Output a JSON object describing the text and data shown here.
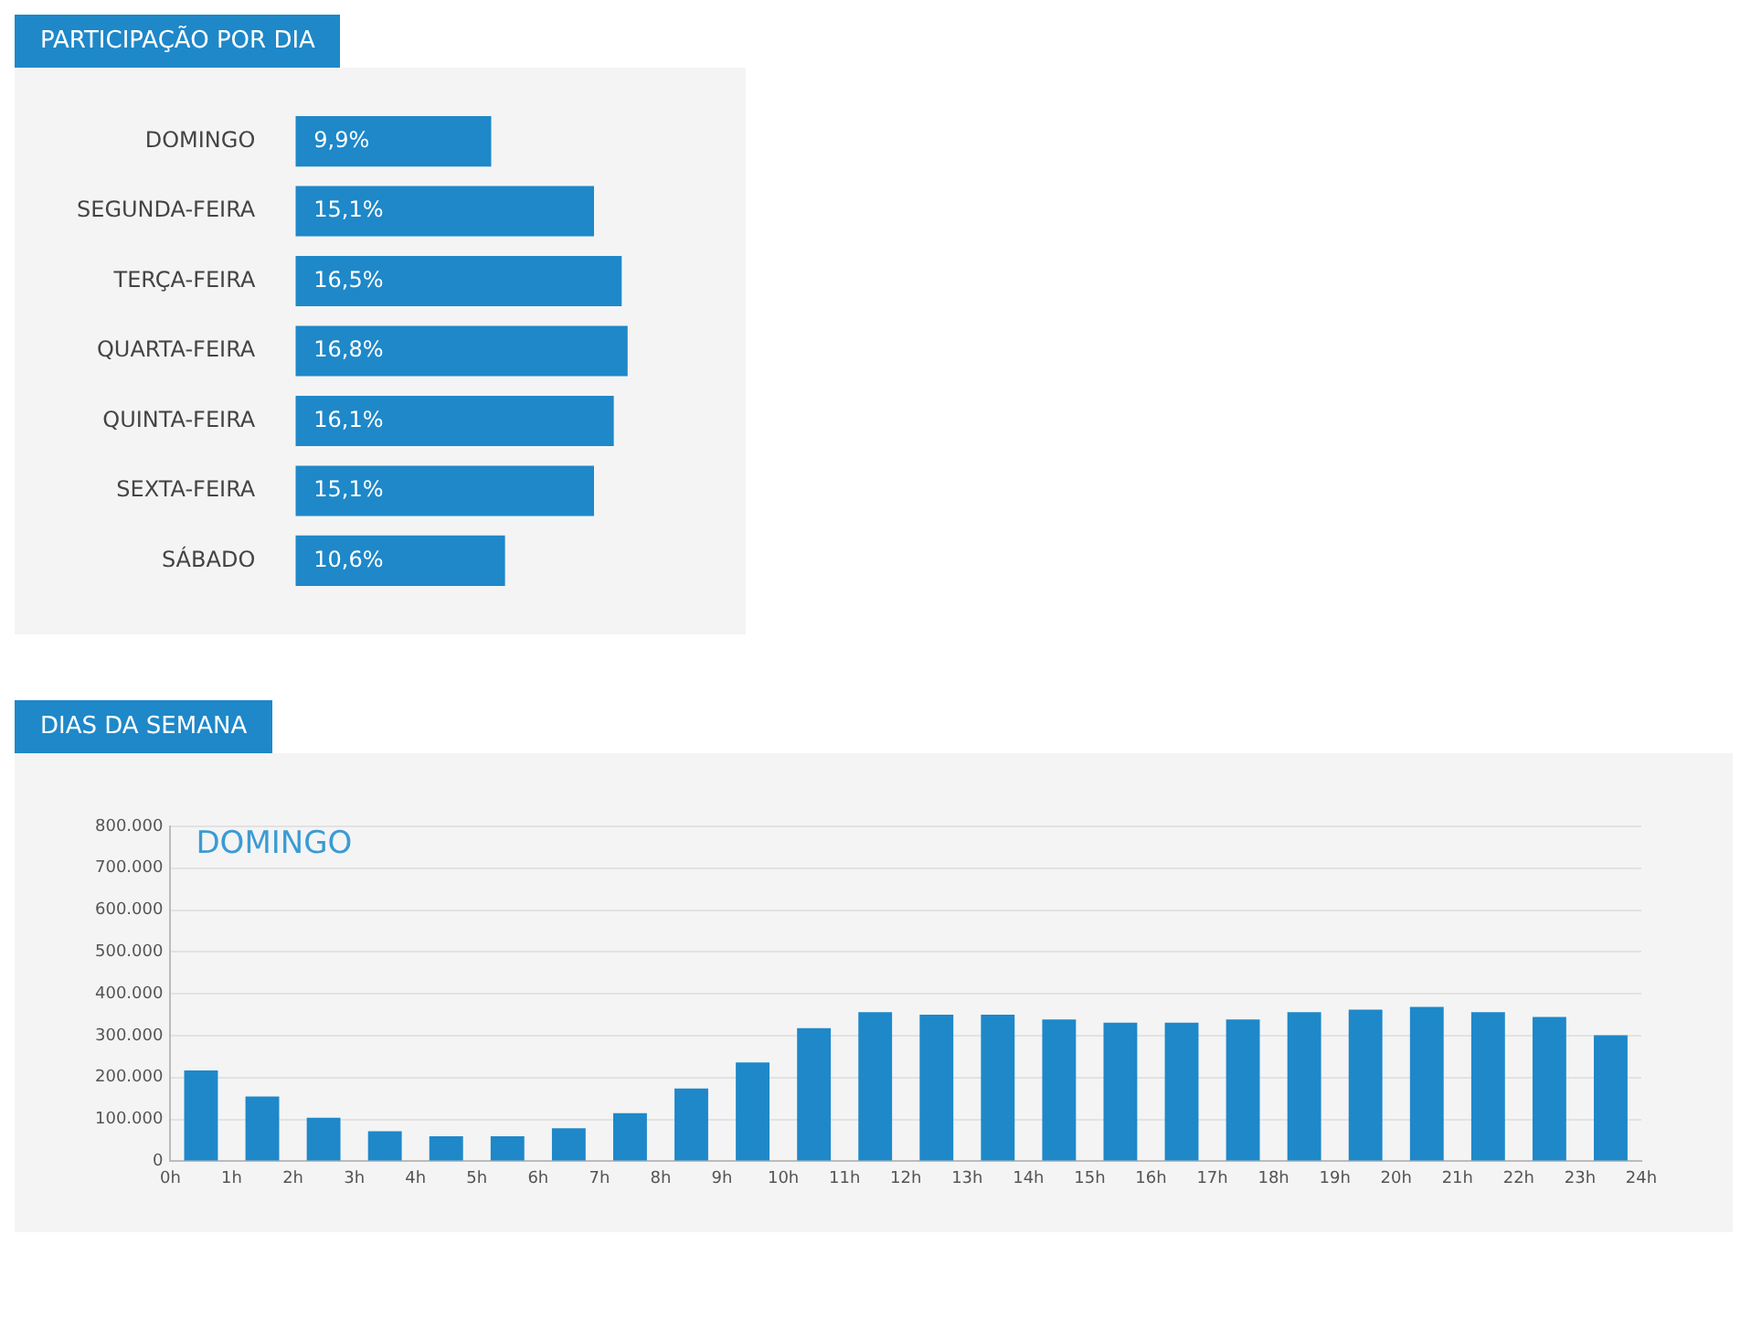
{
  "chart_data": [
    {
      "type": "bar",
      "title": "PARTICIPAÇÃO POR DIA",
      "orientation": "horizontal",
      "categories": [
        "DOMINGO",
        "SEGUNDA-FEIRA",
        "TERÇA-FEIRA",
        "QUARTA-FEIRA",
        "QUINTA-FEIRA",
        "SEXTA-FEIRA",
        "SÁBADO"
      ],
      "values": [
        9.9,
        15.1,
        16.5,
        16.8,
        16.1,
        15.1,
        10.6
      ],
      "value_labels": [
        "9,9%",
        "15,1%",
        "16,5%",
        "16,8%",
        "16,1%",
        "15,1%",
        "10,6%"
      ],
      "color": "#1e88c9",
      "grid": false,
      "tick_labels": "y"
    },
    {
      "type": "bar",
      "title": "DIAS DA SEMANA",
      "subtitle": "DOMINGO",
      "x": [
        0.5,
        1.5,
        2.5,
        3.5,
        4.5,
        5.5,
        6.5,
        7.5,
        8.5,
        9.5,
        10.5,
        11.5,
        12.5,
        13.5,
        14.5,
        15.5,
        16.5,
        17.5,
        18.5,
        19.5,
        20.5,
        21.5,
        22.5,
        23.5
      ],
      "values": [
        217000,
        155000,
        104000,
        72000,
        60000,
        60000,
        79000,
        115000,
        174000,
        236000,
        318000,
        356000,
        350000,
        350000,
        339000,
        331000,
        331000,
        339000,
        356000,
        362000,
        369000,
        356000,
        345000,
        301000
      ],
      "color": "#1e88c9",
      "grid": "y",
      "xlim": [
        0,
        24
      ],
      "xticks": [
        {
          "value": 0,
          "label": "0h"
        },
        {
          "value": 1,
          "label": "1h"
        },
        {
          "value": 2,
          "label": "2h"
        },
        {
          "value": 3,
          "label": "3h"
        },
        {
          "value": 4,
          "label": "4h"
        },
        {
          "value": 5,
          "label": "5h"
        },
        {
          "value": 6,
          "label": "6h"
        },
        {
          "value": 7,
          "label": "7h"
        },
        {
          "value": 8,
          "label": "8h"
        },
        {
          "value": 9,
          "label": "9h"
        },
        {
          "value": 10,
          "label": "10h"
        },
        {
          "value": 11,
          "label": "11h"
        },
        {
          "value": 12,
          "label": "12h"
        },
        {
          "value": 13,
          "label": "13h"
        },
        {
          "value": 14,
          "label": "14h"
        },
        {
          "value": 15,
          "label": "15h"
        },
        {
          "value": 16,
          "label": "16h"
        },
        {
          "value": 17,
          "label": "17h"
        },
        {
          "value": 18,
          "label": "18h"
        },
        {
          "value": 19,
          "label": "19h"
        },
        {
          "value": 20,
          "label": "20h"
        },
        {
          "value": 21,
          "label": "21h"
        },
        {
          "value": 22,
          "label": "22h"
        },
        {
          "value": 23,
          "label": "23h"
        },
        {
          "value": 24,
          "label": "24h"
        }
      ],
      "ylim": [
        0,
        800000
      ],
      "yticks": [
        0,
        {
          "value": 100000,
          "label": "100.000"
        },
        {
          "value": 200000,
          "label": "200.000"
        },
        {
          "value": 300000,
          "label": "300.000"
        },
        {
          "value": 400000,
          "label": "400.000"
        },
        {
          "value": 500000,
          "label": "500.000"
        },
        {
          "value": 600000,
          "label": "600.000"
        },
        {
          "value": 700000,
          "label": "700.000"
        },
        {
          "value": 800000,
          "label": "800.000"
        }
      ]
    }
  ]
}
